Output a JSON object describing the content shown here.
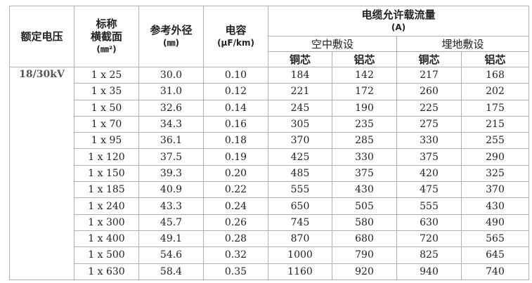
{
  "headers": {
    "voltage": "额定电压",
    "section_line1": "标称",
    "section_line2": "横截面",
    "section_unit": "(㎜²)",
    "diameter": "参考外径",
    "diameter_unit": "(㎜)",
    "capacitance": "电容",
    "capacitance_unit": "(μF/km)",
    "ampacity": "电缆允许载流量",
    "ampacity_unit": "(A)",
    "air": "空中敷设",
    "ground": "埋地敷设",
    "copper": "铜芯",
    "aluminum": "铝芯"
  },
  "voltage": "18/30kV",
  "rows": [
    [
      "1 x 25",
      "30.0",
      "0.10",
      "184",
      "142",
      "217",
      "168"
    ],
    [
      "1 x 35",
      "31.0",
      "0.12",
      "221",
      "172",
      "260",
      "202"
    ],
    [
      "1 x 50",
      "32.6",
      "0.14",
      "245",
      "190",
      "225",
      "175"
    ],
    [
      "1 x 70",
      "34.3",
      "0.16",
      "305",
      "235",
      "275",
      "215"
    ],
    [
      "1 x 95",
      "36.1",
      "0.18",
      "370",
      "285",
      "330",
      "255"
    ],
    [
      "1 x 120",
      "37.5",
      "0.19",
      "425",
      "330",
      "375",
      "290"
    ],
    [
      "1 x 150",
      "39.3",
      "0.20",
      "485",
      "375",
      "420",
      "325"
    ],
    [
      "1 x 185",
      "40.9",
      "0.22",
      "555",
      "430",
      "475",
      "370"
    ],
    [
      "1 x 240",
      "43.3",
      "0.24",
      "650",
      "505",
      "555",
      "430"
    ],
    [
      "1 x 300",
      "45.7",
      "0.26",
      "745",
      "580",
      "630",
      "490"
    ],
    [
      "1 x 400",
      "49.1",
      "0.28",
      "870",
      "680",
      "720",
      "565"
    ],
    [
      "1 x 500",
      "54.6",
      "0.32",
      "1000",
      "790",
      "825",
      "645"
    ],
    [
      "1 x 630",
      "58.4",
      "0.35",
      "1160",
      "920",
      "940",
      "740"
    ]
  ]
}
